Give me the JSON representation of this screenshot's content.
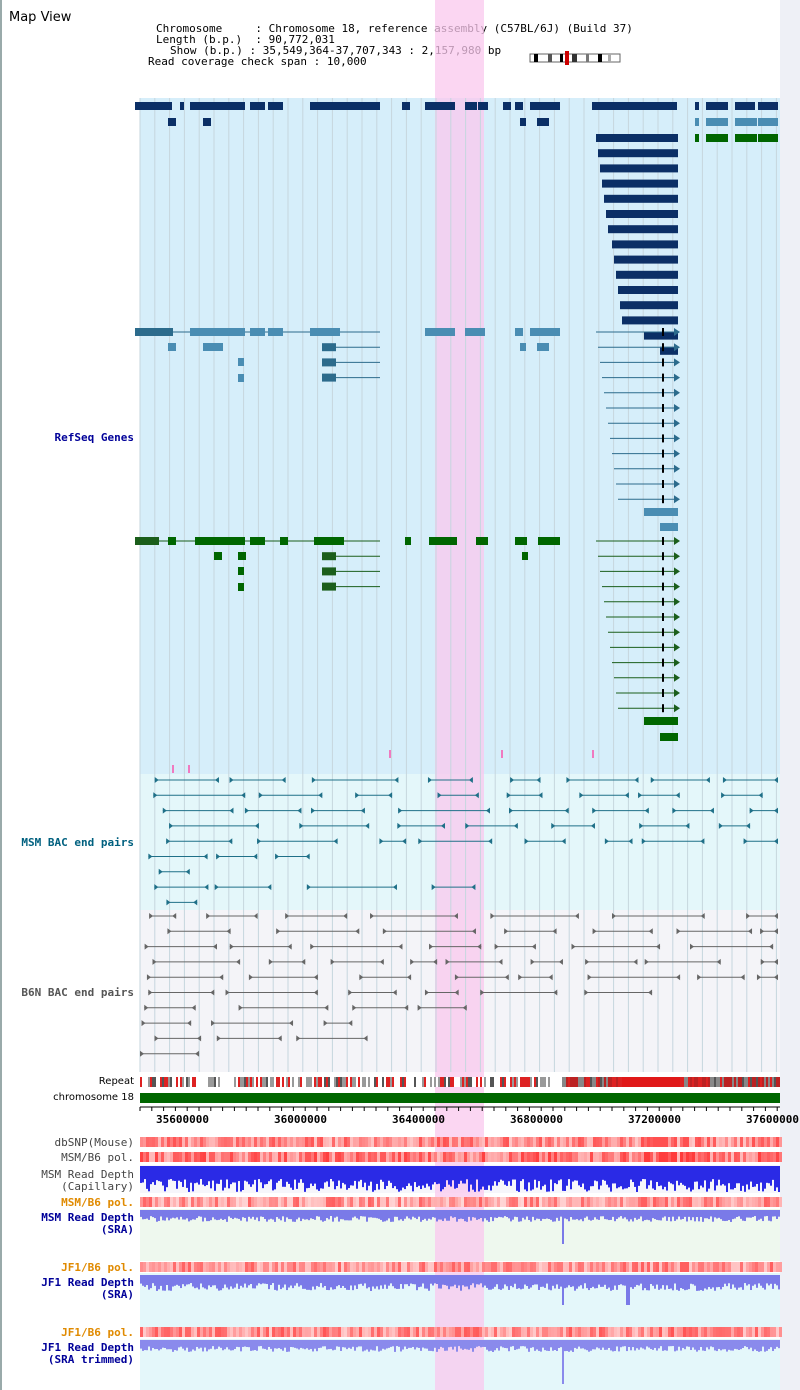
{
  "title": "Map View",
  "info": {
    "chromosome_label": "Chromosome",
    "chromosome_value": "Chromosome 18, reference assembly (C57BL/6J) (Build 37)",
    "length_label": "Length (b.p.)",
    "length_value": "90,772,031",
    "show_label": "Show (b.p.)",
    "show_value": "35,549,364-37,707,343 : 2,157,980 bp",
    "coverage_label": "Read coverage check span",
    "coverage_value": "10,000"
  },
  "tracks": {
    "refseq": {
      "label": "RefSeq Genes",
      "color": "#000099"
    },
    "msm_bac": {
      "label": "MSM BAC end pairs",
      "color": "#00607f"
    },
    "b6n_bac": {
      "label": "B6N BAC end pairs",
      "color": "#555555"
    },
    "repeat": {
      "label": "Repeat"
    },
    "chromosome": {
      "label": "chromosome 18"
    },
    "dbsnp": {
      "label": "dbSNP(Mouse)",
      "color": "#444444"
    },
    "msm_b6_pol_1": {
      "label": "MSM/B6 pol.",
      "color": "#444444"
    },
    "msm_read_cap_1": {
      "label": "MSM Read Depth",
      "color": "#444444"
    },
    "msm_read_cap_2": {
      "label": "(Capillary)",
      "color": "#444444"
    },
    "msm_b6_pol_2": {
      "label": "MSM/B6 pol.",
      "color": "#e08a00"
    },
    "msm_read_sra_1": {
      "label": "MSM Read Depth",
      "color": "#000099"
    },
    "msm_read_sra_2": {
      "label": "(SRA)",
      "color": "#000099"
    },
    "jf1_b6_pol_1": {
      "label": "JF1/B6 pol.",
      "color": "#e08a00"
    },
    "jf1_read_sra_1": {
      "label": "JF1 Read Depth",
      "color": "#000099"
    },
    "jf1_read_sra_2": {
      "label": "(SRA)",
      "color": "#000099"
    },
    "jf1_b6_pol_2": {
      "label": "JF1/B6 pol.",
      "color": "#e08a00"
    },
    "jf1_read_trim_1": {
      "label": "JF1 Read Depth",
      "color": "#000099"
    },
    "jf1_read_trim_2": {
      "label": "(SRA trimmed)",
      "color": "#000099"
    }
  },
  "axis": {
    "ticks": [
      "35600000",
      "36000000",
      "36400000",
      "36800000",
      "37200000",
      "37600000"
    ]
  },
  "colors": {
    "refseq_bg": "#d6eefa",
    "highlight": "#fbd8f4",
    "dark_gene": "#0b2f66",
    "mid_gene": "#4a8db3",
    "green_gene": "#006600",
    "chrom_bar": "#006600"
  }
}
